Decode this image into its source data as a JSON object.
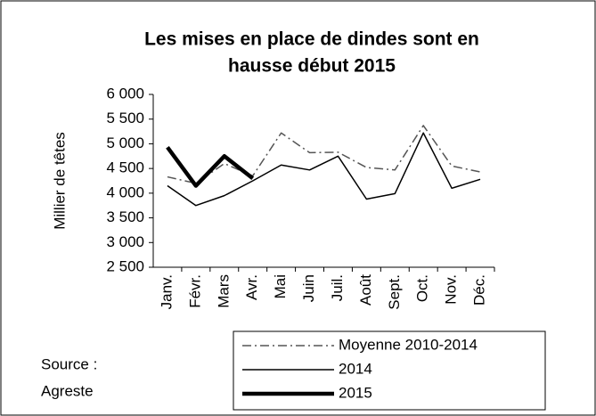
{
  "chart_data": {
    "type": "line",
    "title": [
      "Les mises en place de dindes sont en",
      "hausse début 2015"
    ],
    "y_label": "Millier de têtes",
    "source": [
      "Source :",
      "Agreste"
    ],
    "categories": [
      "Janv.",
      "Févr.",
      "Mars",
      "Avr.",
      "Mai",
      "Juin",
      "Juil.",
      "Août",
      "Sept.",
      "Oct.",
      "Nov.",
      "Déc."
    ],
    "series": [
      {
        "name": "Moyenne 2010-2014",
        "color": "#555555",
        "style": "dashdot",
        "values": [
          4330,
          4200,
          4600,
          4350,
          5220,
          4820,
          4830,
          4520,
          4470,
          5370,
          4550,
          4430
        ]
      },
      {
        "name": "2014",
        "color": "#000000",
        "style": "solid",
        "values": [
          4150,
          3750,
          3950,
          4250,
          4570,
          4470,
          4750,
          3880,
          3990,
          5220,
          4100,
          4280
        ]
      },
      {
        "name": "2015",
        "color": "#000000",
        "style": "thick",
        "values": [
          4930,
          4150,
          4750,
          4300,
          null,
          null,
          null,
          null,
          null,
          null,
          null,
          null
        ]
      }
    ],
    "ylim": [
      2500,
      6000
    ],
    "yticks": [
      {
        "value": 2500,
        "label": "2 500"
      },
      {
        "value": 3000,
        "label": "3 000"
      },
      {
        "value": 3500,
        "label": "3 500"
      },
      {
        "value": 4000,
        "label": "4 000"
      },
      {
        "value": 4500,
        "label": "4 500"
      },
      {
        "value": 5000,
        "label": "5 000"
      },
      {
        "value": 5500,
        "label": "5 500"
      },
      {
        "value": 6000,
        "label": "6 000"
      }
    ],
    "grid": false
  }
}
